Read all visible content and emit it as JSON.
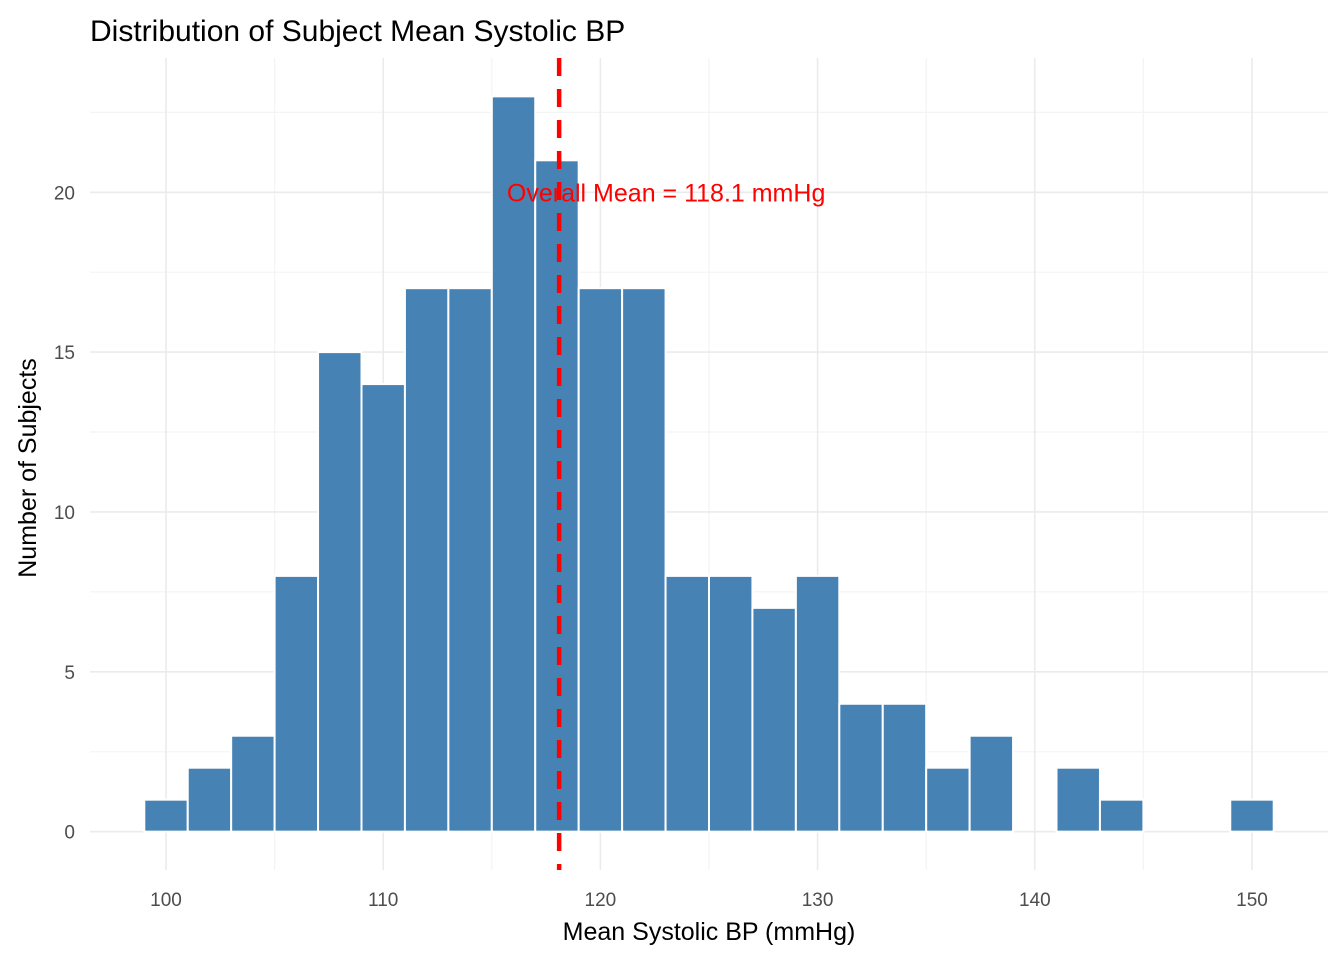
{
  "chart_data": {
    "type": "bar",
    "title": "Distribution of Subject Mean Systolic BP",
    "xlabel": "Mean Systolic BP (mmHg)",
    "ylabel": "Number of Subjects",
    "xlim": [
      96.5,
      153.5
    ],
    "ylim": [
      -1.2,
      24.2
    ],
    "x_ticks": [
      100,
      110,
      120,
      130,
      140,
      150
    ],
    "y_ticks": [
      0,
      5,
      10,
      15,
      20
    ],
    "x_tick_labels": [
      "100",
      "110",
      "120",
      "130",
      "140",
      "150"
    ],
    "y_tick_labels": [
      "0",
      "5",
      "10",
      "15",
      "20"
    ],
    "grid": true,
    "bin_width": 2,
    "bins": [
      {
        "x": 100,
        "count": 1
      },
      {
        "x": 102,
        "count": 2
      },
      {
        "x": 104,
        "count": 3
      },
      {
        "x": 106,
        "count": 8
      },
      {
        "x": 108,
        "count": 15
      },
      {
        "x": 110,
        "count": 14
      },
      {
        "x": 112,
        "count": 17
      },
      {
        "x": 114,
        "count": 17
      },
      {
        "x": 116,
        "count": 23
      },
      {
        "x": 118,
        "count": 21
      },
      {
        "x": 120,
        "count": 17
      },
      {
        "x": 122,
        "count": 17
      },
      {
        "x": 124,
        "count": 8
      },
      {
        "x": 126,
        "count": 8
      },
      {
        "x": 128,
        "count": 7
      },
      {
        "x": 130,
        "count": 8
      },
      {
        "x": 132,
        "count": 4
      },
      {
        "x": 134,
        "count": 4
      },
      {
        "x": 136,
        "count": 2
      },
      {
        "x": 138,
        "count": 3
      },
      {
        "x": 140,
        "count": 0
      },
      {
        "x": 142,
        "count": 2
      },
      {
        "x": 144,
        "count": 1
      },
      {
        "x": 146,
        "count": 0
      },
      {
        "x": 148,
        "count": 0
      },
      {
        "x": 150,
        "count": 1
      }
    ],
    "mean_line": {
      "value": 118.1,
      "label": "Overall Mean = 118.1 mmHg",
      "label_y": 20
    },
    "colors": {
      "bar_fill": "#4682B4",
      "bar_edge": "#ffffff",
      "mean_line": "#FF0000",
      "grid_major": "#EBEBEB",
      "grid_minor": "#F4F4F4"
    }
  }
}
